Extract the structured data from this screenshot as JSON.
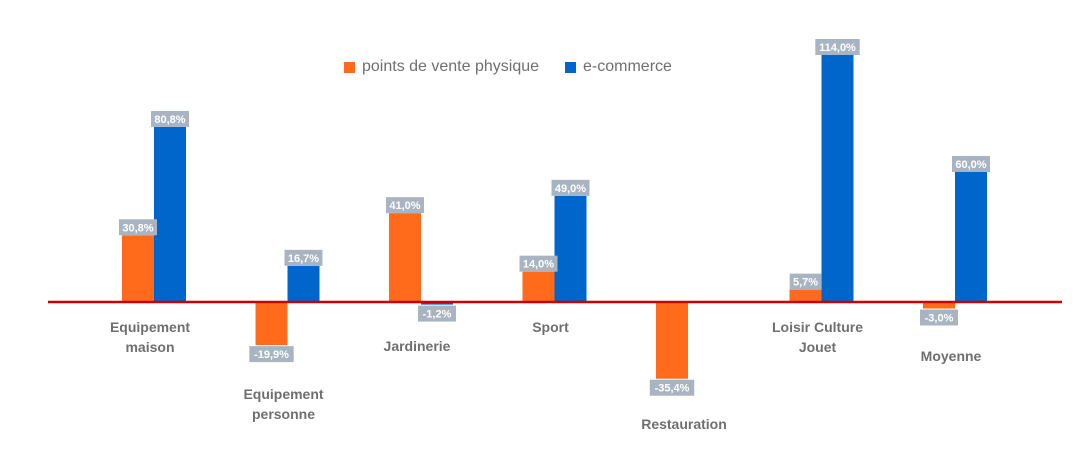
{
  "chart_data": {
    "type": "bar",
    "categories": [
      [
        "Equipement",
        "maison"
      ],
      [
        "Equipement",
        "personne"
      ],
      [
        "Jardinerie"
      ],
      [
        "Sport"
      ],
      [
        "Restauration"
      ],
      [
        "Loisir Culture",
        "Jouet"
      ],
      [
        "Moyenne"
      ]
    ],
    "series": [
      {
        "name": "points de vente physique",
        "color": "#ff6b1a",
        "values": [
          30.8,
          -19.9,
          41.0,
          14.0,
          -35.4,
          5.7,
          -3.0
        ],
        "labels": [
          "30,8%",
          "-19,9%",
          "41,0%",
          "14,0%",
          "-35,4%",
          "5,7%",
          "-3,0%"
        ]
      },
      {
        "name": "e-commerce",
        "color": "#0066cc",
        "values": [
          80.8,
          16.7,
          -1.2,
          49.0,
          null,
          114.0,
          60.0
        ],
        "labels": [
          "80,8%",
          "16,7%",
          "-1,2%",
          "49,0%",
          null,
          "114,0%",
          "60,0%"
        ]
      }
    ],
    "zero_line_color": "#cc0000",
    "label_box_color": "#a9b4c2",
    "title": "",
    "xlabel": "",
    "ylabel": "",
    "ylim": [
      -40,
      120
    ],
    "grid": false,
    "legend_position": "top-center"
  }
}
